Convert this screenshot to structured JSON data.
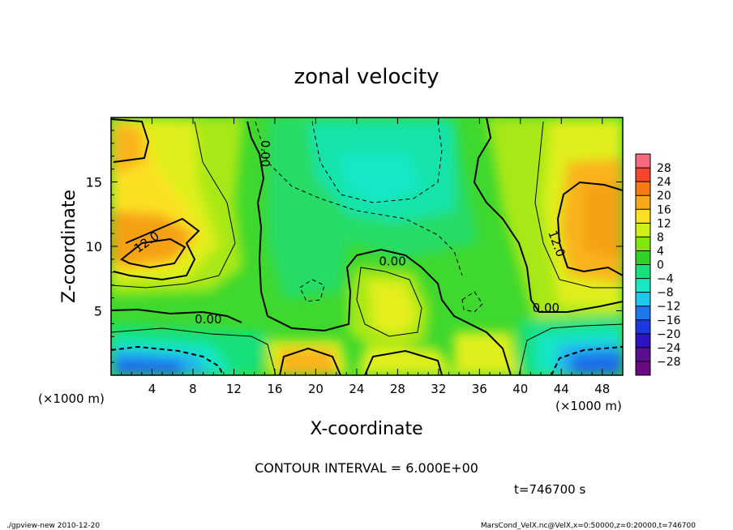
{
  "chart_data": {
    "type": "contour",
    "title": "zonal velocity",
    "xlabel": "X-coordinate",
    "ylabel": "Z-coordinate",
    "x_unit": "(×1000 m)",
    "x_unit_right": "(×1000 m)",
    "xlim": [
      0,
      50
    ],
    "ylim": [
      0,
      20
    ],
    "x_ticks": [
      4,
      8,
      12,
      16,
      20,
      24,
      28,
      32,
      36,
      40,
      44,
      48
    ],
    "y_ticks": [
      5,
      10,
      15
    ],
    "contour_interval_text": "CONTOUR INTERVAL = 6.000E+00",
    "time_text": "t=746700 s",
    "contour_labels": [
      {
        "text": "12.0",
        "x": 3.5,
        "z": 10.3
      },
      {
        "text": "0.00",
        "x": 15.0,
        "z": 17.2
      },
      {
        "text": "0.00",
        "x": 27.5,
        "z": 8.8
      },
      {
        "text": "0.00",
        "x": 9.5,
        "z": 4.3
      },
      {
        "text": "12.0",
        "x": 43.5,
        "z": 10.2
      },
      {
        "text": "0.00",
        "x": 42.5,
        "z": 5.2
      }
    ],
    "colorbar": {
      "levels": [
        28,
        24,
        20,
        16,
        12,
        8,
        4,
        0,
        -4,
        -8,
        -12,
        -16,
        -20,
        -24,
        -28
      ],
      "colors": [
        "#f46a80",
        "#f5452e",
        "#f77a14",
        "#f9a818",
        "#fae020",
        "#d0ef16",
        "#7fe60e",
        "#2ed228",
        "#19e07c",
        "#17e8c2",
        "#20c8ee",
        "#1c78ec",
        "#1a3ae0",
        "#2c12c0",
        "#58108e",
        "#6a0a80"
      ]
    }
  },
  "footer": {
    "left": "./gpview-new   2010-12-20",
    "right": "MarsCond_VelX.nc@VelX,x=0:50000,z=0:20000,t=746700"
  }
}
